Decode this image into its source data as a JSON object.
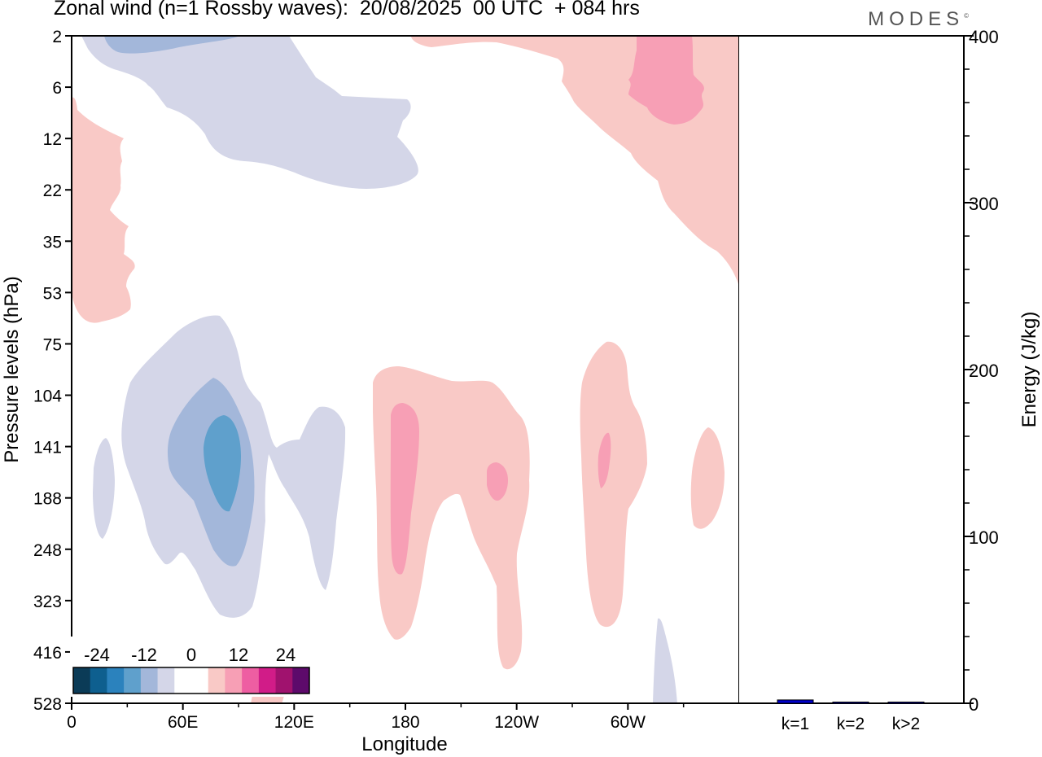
{
  "header": {
    "title": "Zonal wind (n=1 Rossby waves):  20/08/2025  00 UTC  + 084 hrs",
    "brand": "MODES",
    "brand_mark": "©"
  },
  "chart_data": [
    {
      "type": "heatmap",
      "subtype": "filled-contour (longitude-pressure cross-section)",
      "title": "Zonal wind (n=1 Rossby waves):  20/08/2025  00 UTC  + 084 hrs",
      "xlabel": "Longitude",
      "ylabel": "Pressure levels (hPa)",
      "x_range_deg": [
        0,
        360
      ],
      "x_ticks": [
        {
          "deg": 0,
          "label": "0"
        },
        {
          "deg": 60,
          "label": "60E"
        },
        {
          "deg": 120,
          "label": "120E"
        },
        {
          "deg": 180,
          "label": "180"
        },
        {
          "deg": 240,
          "label": "120W"
        },
        {
          "deg": 300,
          "label": "60W"
        }
      ],
      "y_levels": [
        "2",
        "6",
        "12",
        "22",
        "35",
        "53",
        "75",
        "104",
        "141",
        "188",
        "248",
        "323",
        "416",
        "528"
      ],
      "colorbar": {
        "labels": [
          "-24",
          "-12",
          "0",
          "12",
          "24"
        ],
        "label_positions": [
          -24,
          -12,
          0,
          12,
          24
        ],
        "range": [
          -30,
          30
        ],
        "colors": [
          "#0b3b57",
          "#0e5f8f",
          "#2b82bd",
          "#5fa0cc",
          "#a3b7da",
          "#d4d6e8",
          "#ffffff",
          "#ffffff",
          "#f9c9c6",
          "#f79fb5",
          "#ee5ea2",
          "#d11c88",
          "#a0126e",
          "#5d0a6b"
        ]
      },
      "regions": [
        {
          "name": "upper-west-easterly",
          "sign": "negative",
          "level": 1
        },
        {
          "name": "upper-west-easterly-core",
          "sign": "negative",
          "level": 2
        },
        {
          "name": "strat-east-westerly",
          "sign": "positive",
          "level": 1
        },
        {
          "name": "strat-east-westerly-core",
          "sign": "positive",
          "level": 2
        },
        {
          "name": "strat-left-westerly",
          "sign": "positive",
          "level": 1
        },
        {
          "name": "trop-easterly-60E",
          "sign": "negative",
          "level": 1
        },
        {
          "name": "trop-easterly-60E-mid",
          "sign": "negative",
          "level": 2
        },
        {
          "name": "trop-easterly-60E-core",
          "sign": "negative",
          "level": 3
        },
        {
          "name": "trop-easterly-small-15E",
          "sign": "negative",
          "level": 1
        },
        {
          "name": "trop-westerly-180",
          "sign": "positive",
          "level": 1
        },
        {
          "name": "trop-westerly-180-core",
          "sign": "positive",
          "level": 2
        },
        {
          "name": "trop-westerly-135W-core",
          "sign": "positive",
          "level": 2
        },
        {
          "name": "trop-westerly-70W",
          "sign": "positive",
          "level": 1
        },
        {
          "name": "trop-westerly-70W-core",
          "sign": "positive",
          "level": 2
        },
        {
          "name": "trop-westerly-25W",
          "sign": "positive",
          "level": 1
        },
        {
          "name": "surface-easterly-50W",
          "sign": "negative",
          "level": 1
        },
        {
          "name": "surface-westerly-105E",
          "sign": "positive",
          "level": 1
        }
      ]
    },
    {
      "type": "bar",
      "ylabel": "Energy (J/kg)",
      "ylim": [
        0,
        400
      ],
      "yticks": [
        0,
        100,
        200,
        300,
        400
      ],
      "categories": [
        "k=1",
        "k=2",
        "k>2"
      ],
      "values": [
        2,
        0.5,
        0.5
      ],
      "bar_color": "#0000cc"
    }
  ]
}
